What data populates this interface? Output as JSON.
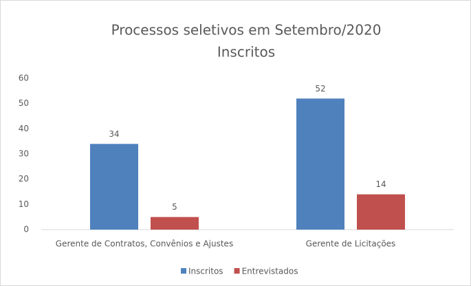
{
  "chart_data": {
    "type": "bar",
    "title": "Processos seletivos em Setembro/2020",
    "subtitle": "Inscritos",
    "categories": [
      "Gerente de Contratos, Convênios e Ajustes",
      "Gerente de Licitações"
    ],
    "series": [
      {
        "name": "Inscritos",
        "color": "#4f81bd",
        "values": [
          34,
          52
        ]
      },
      {
        "name": "Entrevistados",
        "color": "#c0504d",
        "values": [
          5,
          14
        ]
      }
    ],
    "ylim": [
      0,
      60
    ],
    "yticks": [
      0,
      10,
      20,
      30,
      40,
      50,
      60
    ],
    "grid": false,
    "legend": "bottom"
  }
}
